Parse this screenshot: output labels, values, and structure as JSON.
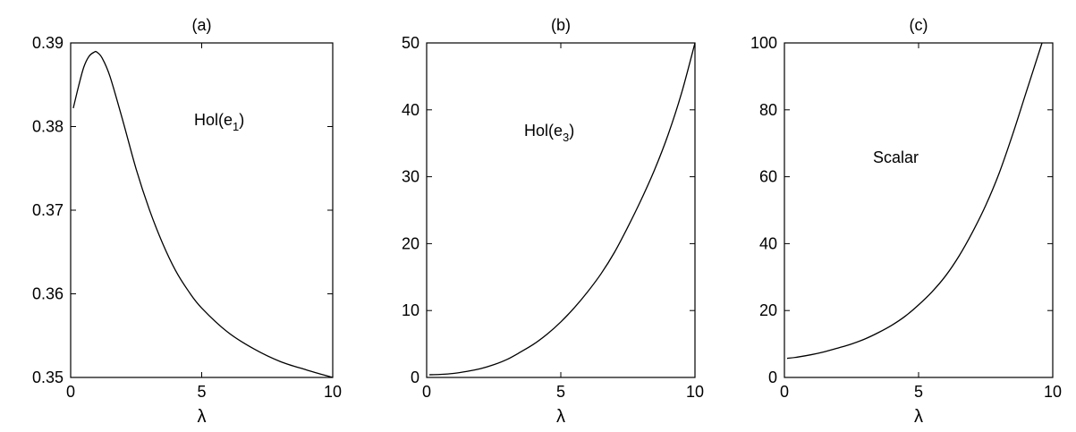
{
  "chart_data": [
    {
      "type": "line",
      "title": "(a)",
      "xlabel": "λ",
      "ylabel": "",
      "xlim": [
        0,
        10
      ],
      "ylim": [
        0.35,
        0.39
      ],
      "xticks": [
        0,
        5,
        10
      ],
      "xtick_labels": [
        "0",
        "5",
        "10"
      ],
      "yticks": [
        0.35,
        0.36,
        0.37,
        0.38,
        0.39
      ],
      "ytick_labels": [
        "0.35",
        "0.36",
        "0.37",
        "0.38",
        "0.39"
      ],
      "grid": false,
      "annotation": {
        "text": "Hol(e",
        "sub": "1",
        "close": ")"
      },
      "series": [
        {
          "x": [
            0.1,
            0.3,
            0.5,
            0.7,
            0.9,
            1.0,
            1.2,
            1.5,
            2.0,
            2.5,
            3.0,
            3.5,
            4.0,
            4.5,
            5.0,
            6.0,
            7.0,
            8.0,
            9.0,
            10.0
          ],
          "y": [
            0.3822,
            0.3848,
            0.3871,
            0.3884,
            0.3889,
            0.3889,
            0.3882,
            0.386,
            0.3806,
            0.3749,
            0.3701,
            0.3661,
            0.3628,
            0.3603,
            0.3583,
            0.3554,
            0.3534,
            0.3519,
            0.3509,
            0.35
          ]
        }
      ]
    },
    {
      "type": "line",
      "title": "(b)",
      "xlabel": "λ",
      "ylabel": "",
      "xlim": [
        0,
        10
      ],
      "ylim": [
        0,
        50
      ],
      "xticks": [
        0,
        5,
        10
      ],
      "xtick_labels": [
        "0",
        "5",
        "10"
      ],
      "yticks": [
        0,
        10,
        20,
        30,
        40,
        50
      ],
      "ytick_labels": [
        "0",
        "10",
        "20",
        "30",
        "40",
        "50"
      ],
      "grid": false,
      "annotation": {
        "text": "Hol(e",
        "sub": "3",
        "close": ")"
      },
      "series": [
        {
          "x": [
            0.1,
            0.5,
            1.0,
            1.5,
            2.0,
            2.5,
            3.0,
            3.5,
            4.0,
            4.5,
            5.0,
            5.5,
            6.0,
            6.5,
            7.0,
            7.5,
            8.0,
            8.5,
            9.0,
            9.5,
            10.0
          ],
          "y": [
            0.4,
            0.45,
            0.6,
            0.9,
            1.3,
            1.9,
            2.7,
            3.8,
            5.0,
            6.5,
            8.3,
            10.4,
            12.8,
            15.5,
            18.7,
            22.5,
            26.6,
            31.1,
            36.3,
            42.5,
            50.0
          ]
        }
      ]
    },
    {
      "type": "line",
      "title": "(c)",
      "xlabel": "λ",
      "ylabel": "",
      "xlim": [
        0,
        10
      ],
      "ylim": [
        0,
        100
      ],
      "xticks": [
        0,
        5,
        10
      ],
      "xtick_labels": [
        "0",
        "5",
        "10"
      ],
      "yticks": [
        0,
        20,
        40,
        60,
        80,
        100
      ],
      "ytick_labels": [
        "0",
        "20",
        "40",
        "60",
        "80",
        "100"
      ],
      "grid": false,
      "annotation": {
        "text": "Scalar",
        "sub": "",
        "close": ""
      },
      "series": [
        {
          "x": [
            0.1,
            0.5,
            1.0,
            1.5,
            2.0,
            2.5,
            3.0,
            3.5,
            4.0,
            4.5,
            5.0,
            5.5,
            6.0,
            6.5,
            7.0,
            7.5,
            8.0,
            8.5,
            9.0,
            9.6
          ],
          "y": [
            5.7,
            6.1,
            6.8,
            7.7,
            8.8,
            10.0,
            11.5,
            13.4,
            15.6,
            18.3,
            21.7,
            25.6,
            30.3,
            36.2,
            43.3,
            51.4,
            61.0,
            72.5,
            85.0,
            100.0
          ]
        }
      ]
    }
  ]
}
